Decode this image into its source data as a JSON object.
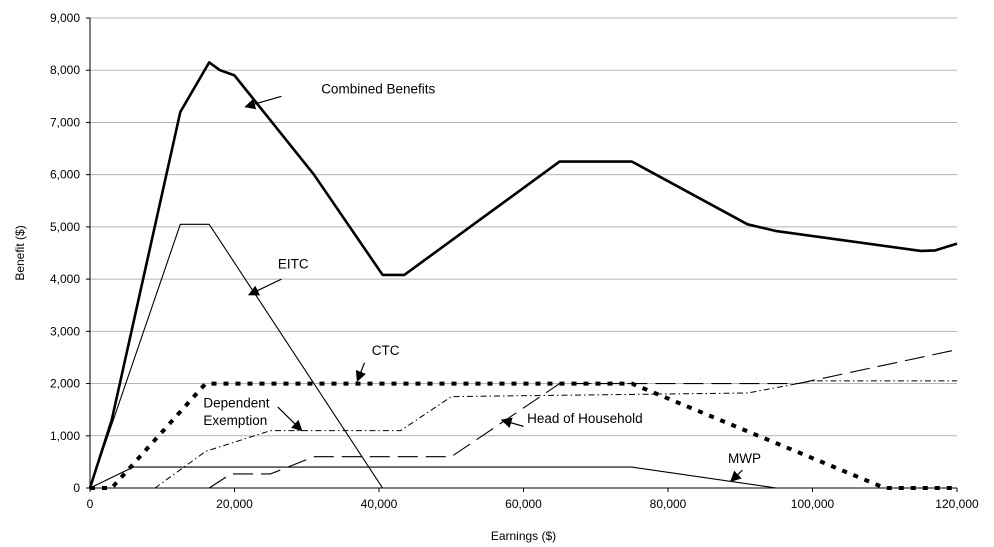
{
  "chart_data": {
    "type": "line",
    "title": "",
    "xlabel": "Earnings ($)",
    "ylabel": "Benefit ($)",
    "xlim": [
      0,
      120000
    ],
    "ylim": [
      0,
      9000
    ],
    "x_ticks": [
      0,
      20000,
      40000,
      60000,
      80000,
      100000,
      120000
    ],
    "x_tick_labels": [
      "0",
      "20,000",
      "40,000",
      "60,000",
      "80,000",
      "100,000",
      "120,000"
    ],
    "y_ticks": [
      0,
      1000,
      2000,
      3000,
      4000,
      5000,
      6000,
      7000,
      8000,
      9000
    ],
    "y_tick_labels": [
      "0",
      "1,000",
      "2,000",
      "3,000",
      "4,000",
      "5,000",
      "6,000",
      "7,000",
      "8,000",
      "9,000"
    ],
    "grid": "horizontal",
    "legend": "none",
    "series": [
      {
        "name": "Combined Benefits",
        "style": "thick-solid",
        "color": "#000000",
        "x": [
          0,
          3000,
          12500,
          16500,
          18000,
          20000,
          31000,
          40500,
          43500,
          65000,
          75000,
          91000,
          95000,
          115000,
          117000,
          120000
        ],
        "y": [
          0,
          1300,
          7200,
          8150,
          8000,
          7900,
          6000,
          4080,
          4080,
          6250,
          6250,
          5050,
          4920,
          4540,
          4550,
          4680
        ]
      },
      {
        "name": "EITC",
        "style": "thin-solid",
        "color": "#000000",
        "x": [
          0,
          12500,
          16500,
          40500
        ],
        "y": [
          0,
          5050,
          5050,
          0
        ]
      },
      {
        "name": "CTC",
        "style": "heavy-dotted",
        "color": "#000000",
        "x": [
          0,
          3000,
          16000,
          75000,
          110000,
          120000
        ],
        "y": [
          0,
          0,
          2000,
          2000,
          0,
          0
        ]
      },
      {
        "name": "Dependent Exemption",
        "style": "dash-dot",
        "color": "#000000",
        "x": [
          9000,
          16000,
          25000,
          43000,
          50000,
          91000,
          100000,
          120000
        ],
        "y": [
          0,
          700,
          1100,
          1100,
          1750,
          1820,
          2050,
          2050
        ]
      },
      {
        "name": "Head of Household",
        "style": "long-dash",
        "color": "#000000",
        "x": [
          16500,
          19500,
          25000,
          31000,
          50000,
          65000,
          98000,
          120000
        ],
        "y": [
          0,
          270,
          270,
          600,
          600,
          2000,
          2000,
          2650
        ]
      },
      {
        "name": "MWP",
        "style": "thin-solid",
        "color": "#000000",
        "x": [
          0,
          6000,
          75000,
          95000,
          120000
        ],
        "y": [
          0,
          400,
          400,
          0,
          0
        ]
      }
    ],
    "annotations": [
      {
        "text": "Combined Benefits",
        "label_at": [
          32000,
          7550
        ],
        "arrow_from": [
          26500,
          7500
        ],
        "arrow_to": [
          21500,
          7300
        ]
      },
      {
        "text": "EITC",
        "label_at": [
          26000,
          4200
        ],
        "arrow_from": [
          26500,
          4000
        ],
        "arrow_to": [
          22000,
          3700
        ]
      },
      {
        "text": "CTC",
        "label_at": [
          39000,
          2550
        ],
        "arrow_from": [
          38000,
          2400
        ],
        "arrow_to": [
          37000,
          2050
        ]
      },
      {
        "text": "Dependent",
        "label_at": [
          15700,
          1540
        ],
        "arrow_from": [
          26000,
          1550
        ],
        "arrow_to": [
          29300,
          1100
        ]
      },
      {
        "text": "Exemption",
        "label_at": [
          15700,
          1210
        ]
      },
      {
        "text": "Head of Household",
        "label_at": [
          60500,
          1240
        ],
        "arrow_from": [
          60000,
          1180
        ],
        "arrow_to": [
          57000,
          1300
        ]
      },
      {
        "text": "MWP",
        "label_at": [
          88300,
          480
        ],
        "arrow_from": [
          90300,
          340
        ],
        "arrow_to": [
          88700,
          130
        ]
      }
    ]
  }
}
